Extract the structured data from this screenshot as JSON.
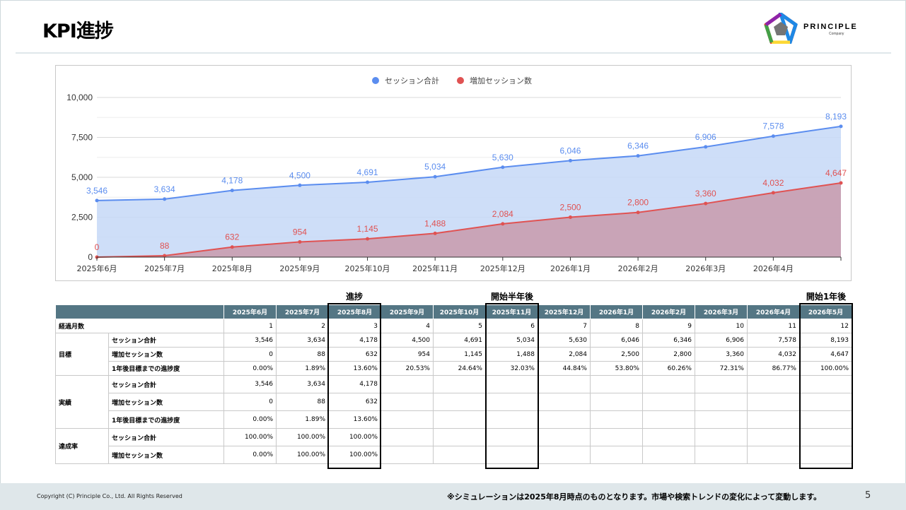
{
  "header": {
    "title": "KPI進捗"
  },
  "logo": {
    "name": "PRINCIPLE",
    "sub": "Company"
  },
  "chart_data": {
    "type": "area",
    "categories": [
      "2025年6月",
      "2025年7月",
      "2025年8月",
      "2025年9月",
      "2025年10月",
      "2025年11月",
      "2025年12月",
      "2026年1月",
      "2026年2月",
      "2026年3月",
      "2026年4月",
      "2026年5月"
    ],
    "x_tick_labels": [
      "2025年6月",
      "2025年7月",
      "2025年8月",
      "2025年9月",
      "2025年10月",
      "2025年11月",
      "2025年12月",
      "2026年1月",
      "2026年2月",
      "2026年3月",
      "2026年4月"
    ],
    "series": [
      {
        "name": "セッション合計",
        "values": [
          3546,
          3634,
          4178,
          4500,
          4691,
          5034,
          5630,
          6046,
          6346,
          6906,
          7578,
          8193
        ],
        "labels": [
          "3,546",
          "3,634",
          "4,178",
          "4,500",
          "4,691",
          "5,034",
          "5,630",
          "6,046",
          "6,346",
          "6,906",
          "7,578",
          "8,193"
        ],
        "color": "#5b8def",
        "fill": "#c5d8f7"
      },
      {
        "name": "増加セッション数",
        "values": [
          0,
          88,
          632,
          954,
          1145,
          1488,
          2084,
          2500,
          2800,
          3360,
          4032,
          4647
        ],
        "labels": [
          "0",
          "88",
          "632",
          "954",
          "1,145",
          "1,488",
          "2,084",
          "2,500",
          "2,800",
          "3,360",
          "4,032",
          "4,647"
        ],
        "color": "#e05252",
        "fill": "#c89aac"
      }
    ],
    "y_ticks": [
      "0",
      "2,500",
      "5,000",
      "7,500",
      "10,000"
    ],
    "ylim": [
      0,
      10000
    ],
    "grid": true,
    "legend": "top-center"
  },
  "markers": {
    "progress": "進捗",
    "half_year": "開始半年後",
    "one_year": "開始1年後"
  },
  "table": {
    "months": [
      "2025年6月",
      "2025年7月",
      "2025年8月",
      "2025年9月",
      "2025年10月",
      "2025年11月",
      "2025年12月",
      "2026年1月",
      "2026年2月",
      "2026年3月",
      "2026年4月",
      "2026年5月"
    ],
    "elapsed_label": "経過月数",
    "elapsed": [
      "1",
      "2",
      "3",
      "4",
      "5",
      "6",
      "7",
      "8",
      "9",
      "10",
      "11",
      "12"
    ],
    "target_label": "目標",
    "actual_label": "実績",
    "rate_label": "達成率",
    "row_total": "セッション合計",
    "row_increase": "増加セッション数",
    "row_progress": "1年後目標までの進捗度",
    "target_total": [
      "3,546",
      "3,634",
      "4,178",
      "4,500",
      "4,691",
      "5,034",
      "5,630",
      "6,046",
      "6,346",
      "6,906",
      "7,578",
      "8,193"
    ],
    "target_increase": [
      "0",
      "88",
      "632",
      "954",
      "1,145",
      "1,488",
      "2,084",
      "2,500",
      "2,800",
      "3,360",
      "4,032",
      "4,647"
    ],
    "target_progress": [
      "0.00%",
      "1.89%",
      "13.60%",
      "20.53%",
      "24.64%",
      "32.03%",
      "44.84%",
      "53.80%",
      "60.26%",
      "72.31%",
      "86.77%",
      "100.00%"
    ],
    "actual_total": [
      "3,546",
      "3,634",
      "4,178",
      "",
      "",
      "",
      "",
      "",
      "",
      "",
      "",
      ""
    ],
    "actual_increase": [
      "0",
      "88",
      "632",
      "",
      "",
      "",
      "",
      "",
      "",
      "",
      "",
      ""
    ],
    "actual_progress": [
      "0.00%",
      "1.89%",
      "13.60%",
      "",
      "",
      "",
      "",
      "",
      "",
      "",
      "",
      ""
    ],
    "rate_total": [
      "100.00%",
      "100.00%",
      "100.00%",
      "",
      "",
      "",
      "",
      "",
      "",
      "",
      "",
      ""
    ],
    "rate_increase": [
      "0.00%",
      "100.00%",
      "100.00%",
      "",
      "",
      "",
      "",
      "",
      "",
      "",
      "",
      ""
    ]
  },
  "footer": {
    "copyright": "Copyright (C) Principle Co., Ltd. All Rights Reserved",
    "note": "※シミュレーションは2025年8月時点のものとなります。市場や検索トレンドの変化によって変動します。",
    "page": "5"
  }
}
